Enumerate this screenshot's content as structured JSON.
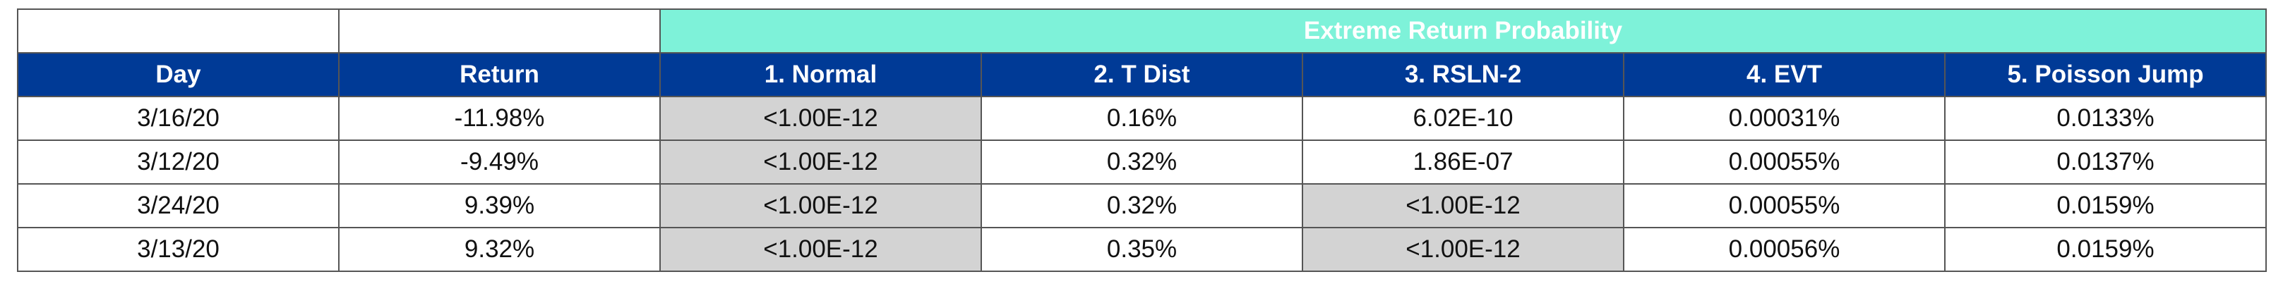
{
  "table": {
    "group_header": "Extreme Return Probability",
    "columns": [
      "Day",
      "Return",
      "1. Normal",
      "2. T Dist",
      "3. RSLN-2",
      "4. EVT",
      "5. Poisson Jump"
    ],
    "rows": [
      [
        "3/16/20",
        "-11.98%",
        "<1.00E-12",
        "0.16%",
        "6.02E-10",
        "0.00031%",
        "0.0133%"
      ],
      [
        "3/12/20",
        "-9.49%",
        "<1.00E-12",
        "0.32%",
        "1.86E-07",
        "0.00055%",
        "0.0137%"
      ],
      [
        "3/24/20",
        "9.39%",
        "<1.00E-12",
        "0.32%",
        "<1.00E-12",
        "0.00055%",
        "0.0159%"
      ],
      [
        "3/13/20",
        "9.32%",
        "<1.00E-12",
        "0.35%",
        "<1.00E-12",
        "0.00056%",
        "0.0159%"
      ]
    ]
  }
}
